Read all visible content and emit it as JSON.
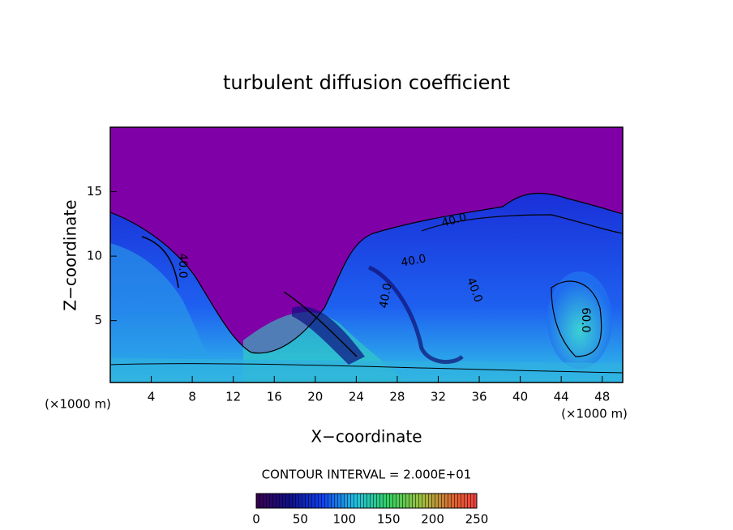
{
  "chart_data": {
    "type": "contour",
    "title": "turbulent diffusion coefficient",
    "x_label": "X−coordinate",
    "y_label": "Z−coordinate",
    "x_unit_left": "(×1000 m)",
    "x_unit_right": "(×1000 m)",
    "xlim": [
      0,
      50
    ],
    "xticks": [
      4,
      8,
      12,
      16,
      20,
      24,
      28,
      32,
      36,
      40,
      44,
      48
    ],
    "ylim": [
      0.2,
      20
    ],
    "yticks": [
      5,
      10,
      15
    ],
    "annotations": [
      "40.0",
      "40.0",
      "40.0",
      "40.0",
      "40.0",
      "60.0"
    ],
    "contour_interval": "CONTOUR INTERVAL = 2.000E+01",
    "colorbar": {
      "lim": [
        0,
        250
      ],
      "ticks": [
        0,
        50,
        100,
        150,
        200,
        250
      ]
    }
  }
}
